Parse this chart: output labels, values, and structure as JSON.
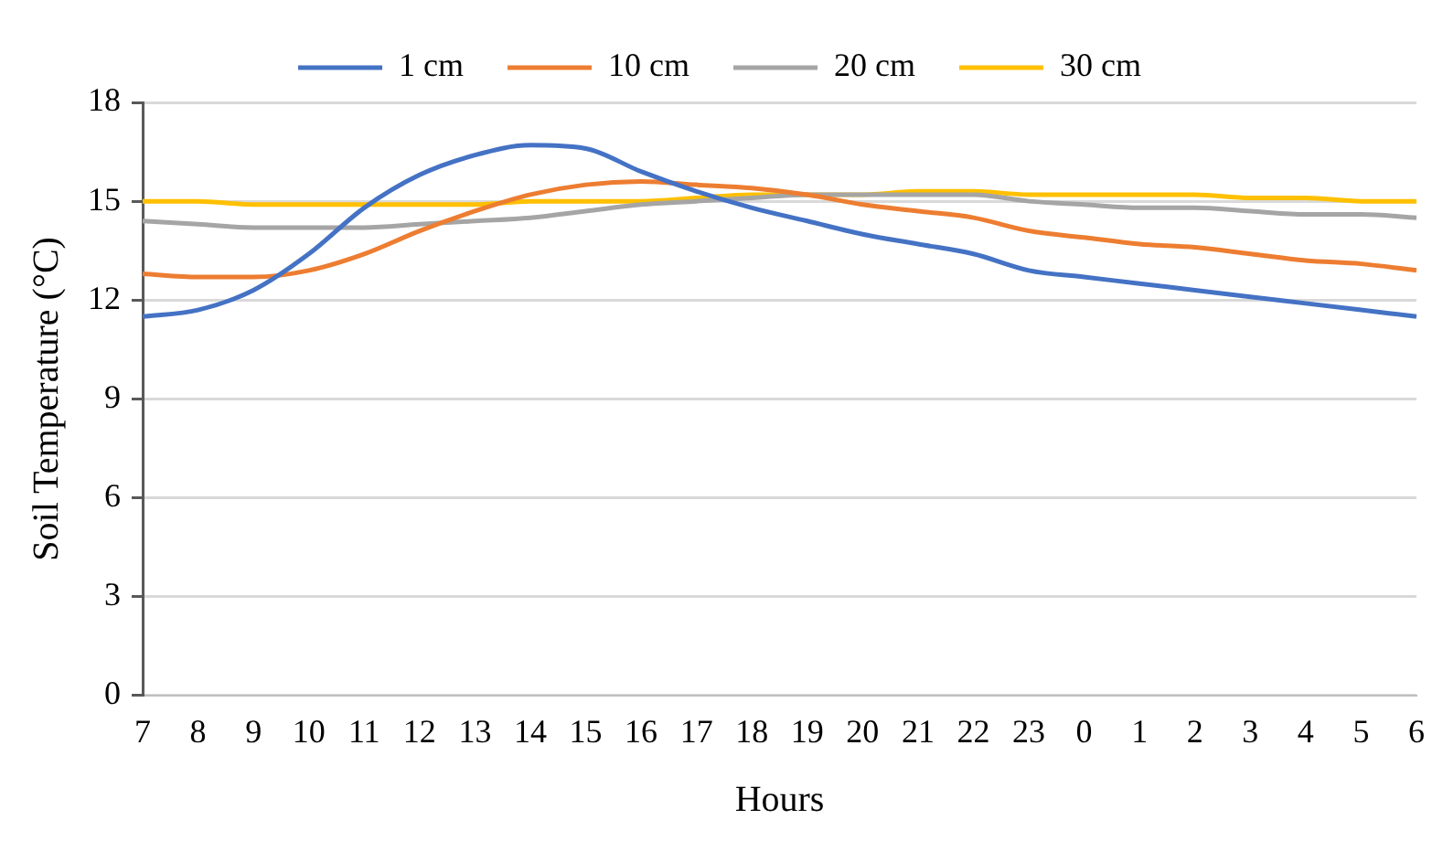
{
  "chart_data": {
    "type": "line",
    "xlabel": "Hours",
    "ylabel": "Soil Temperature (°C)",
    "categories": [
      "7",
      "8",
      "9",
      "10",
      "11",
      "12",
      "13",
      "14",
      "15",
      "16",
      "17",
      "18",
      "19",
      "20",
      "21",
      "22",
      "23",
      "0",
      "1",
      "2",
      "3",
      "4",
      "5",
      "6"
    ],
    "series": [
      {
        "name": "1 cm",
        "color": "#4472c4",
        "values": [
          11.5,
          11.7,
          12.3,
          13.4,
          14.8,
          15.8,
          16.4,
          16.7,
          16.6,
          15.9,
          15.3,
          14.8,
          14.4,
          14.0,
          13.7,
          13.4,
          12.9,
          12.7,
          12.5,
          12.3,
          12.1,
          11.9,
          11.7,
          11.5
        ]
      },
      {
        "name": "10 cm",
        "color": "#ed7d31",
        "values": [
          12.8,
          12.7,
          12.7,
          12.9,
          13.4,
          14.1,
          14.7,
          15.2,
          15.5,
          15.6,
          15.5,
          15.4,
          15.2,
          14.9,
          14.7,
          14.5,
          14.1,
          13.9,
          13.7,
          13.6,
          13.4,
          13.2,
          13.1,
          12.9
        ]
      },
      {
        "name": "20 cm",
        "color": "#a5a5a5",
        "values": [
          14.4,
          14.3,
          14.2,
          14.2,
          14.2,
          14.3,
          14.4,
          14.5,
          14.7,
          14.9,
          15.0,
          15.1,
          15.2,
          15.2,
          15.2,
          15.2,
          15.0,
          14.9,
          14.8,
          14.8,
          14.7,
          14.6,
          14.6,
          14.5
        ]
      },
      {
        "name": "30 cm",
        "color": "#ffc000",
        "values": [
          15.0,
          15.0,
          14.9,
          14.9,
          14.9,
          14.9,
          14.9,
          15.0,
          15.0,
          15.0,
          15.1,
          15.2,
          15.2,
          15.2,
          15.3,
          15.3,
          15.2,
          15.2,
          15.2,
          15.2,
          15.1,
          15.1,
          15.0,
          15.0
        ]
      }
    ],
    "ylim": [
      0,
      18
    ],
    "yticks": [
      0,
      3,
      6,
      9,
      12,
      15,
      18
    ],
    "grid": "y",
    "legend": "top",
    "marker": "none",
    "line_style": "solid"
  }
}
